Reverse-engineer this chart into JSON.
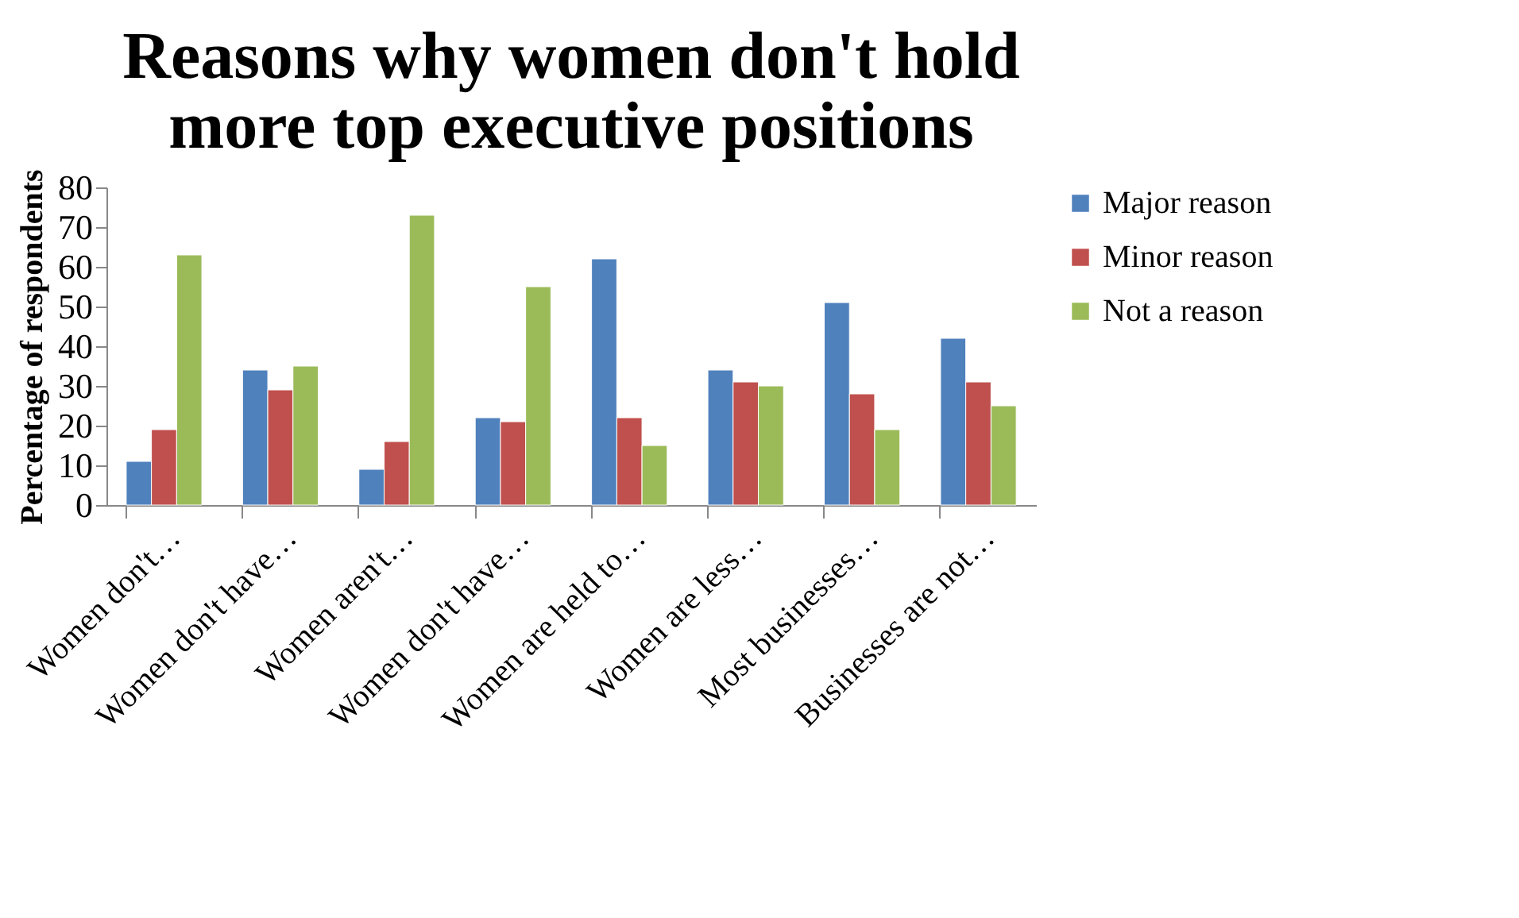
{
  "chart_data": {
    "type": "bar",
    "title": [
      "Reasons why women don't hold",
      "more top executive positions"
    ],
    "ylabel": "Percentage of respondents",
    "categories": [
      "Women don't…",
      "Women don't have…",
      "Women aren't…",
      "Women don't have…",
      "Women are held to…",
      "Women are less…",
      "Most businesses…",
      "Businesses are not…"
    ],
    "series": [
      {
        "name": "Major reason",
        "color": "#4f81bd",
        "values": [
          11,
          34,
          9,
          22,
          62,
          34,
          51,
          42
        ]
      },
      {
        "name": "Minor reason",
        "color": "#c0504d",
        "values": [
          19,
          29,
          16,
          21,
          22,
          31,
          28,
          31
        ]
      },
      {
        "name": "Not a reason",
        "color": "#9bbb59",
        "values": [
          63,
          35,
          73,
          55,
          15,
          30,
          19,
          25
        ]
      }
    ],
    "ylim": [
      0,
      80
    ],
    "yticks": [
      0,
      10,
      20,
      30,
      40,
      50,
      60,
      70,
      80
    ],
    "grid": false,
    "legend": "right"
  }
}
